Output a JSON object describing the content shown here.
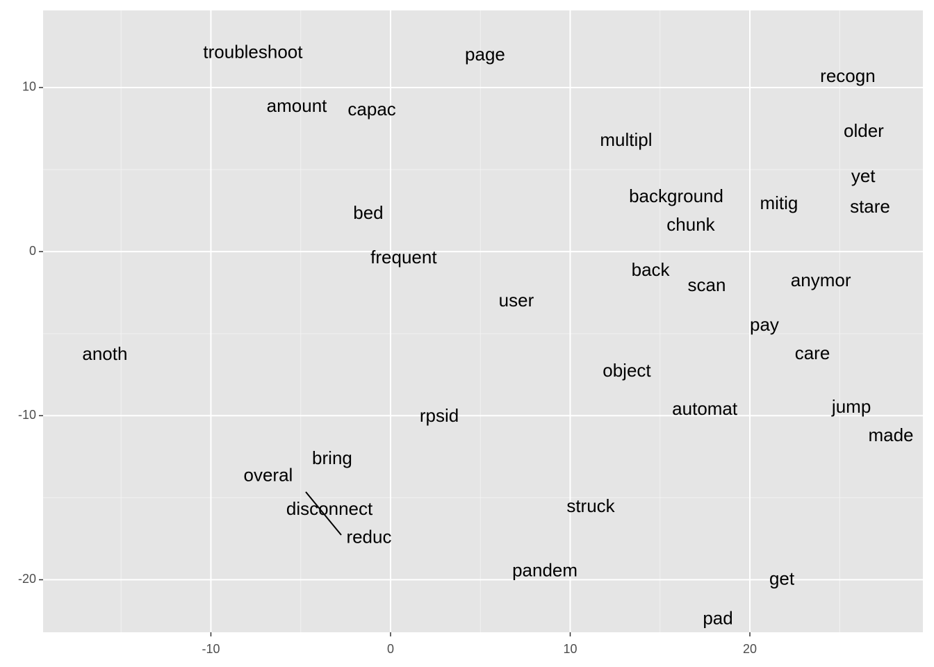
{
  "chart_data": {
    "type": "text-scatter",
    "labels": [
      "troubleshoot",
      "page",
      "recogn",
      "amount",
      "capac",
      "multipl",
      "older",
      "yet",
      "background",
      "mitig",
      "stare",
      "bed",
      "chunk",
      "frequent",
      "back",
      "scan",
      "anymor",
      "user",
      "pay",
      "anoth",
      "care",
      "object",
      "automat",
      "jump",
      "made",
      "rpsid",
      "bring",
      "overal",
      "disconnect",
      "struck",
      "reduc",
      "pandem",
      "get",
      "pad"
    ],
    "x": [
      -7.66,
      5.26,
      25.45,
      -5.22,
      -1.04,
      13.11,
      26.34,
      26.31,
      15.9,
      21.62,
      26.69,
      -1.24,
      16.71,
      0.73,
      14.47,
      17.6,
      23.95,
      7.0,
      20.81,
      -15.9,
      23.48,
      13.15,
      17.49,
      25.65,
      27.85,
      2.71,
      -3.25,
      -6.81,
      -3.4,
      11.14,
      -1.2,
      8.59,
      21.78,
      18.22
    ],
    "values": [
      12.08,
      11.95,
      10.64,
      8.81,
      8.6,
      6.74,
      7.29,
      4.53,
      3.31,
      2.88,
      2.67,
      2.29,
      1.57,
      -0.42,
      -1.19,
      -2.12,
      -1.82,
      -3.05,
      -4.53,
      -6.31,
      -6.27,
      -7.33,
      -9.66,
      -9.53,
      -11.27,
      -10.08,
      -12.67,
      -13.69,
      -15.76,
      -15.59,
      -17.46,
      -19.49,
      -20.0,
      -22.42
    ],
    "xlim": [
      -19.34,
      29.63
    ],
    "ylim": [
      -23.2,
      14.7
    ],
    "xticks": [
      -10,
      0,
      10,
      20
    ],
    "yticks": [
      -20,
      -10,
      0,
      10
    ],
    "x_minor_ticks": [
      -15,
      -5,
      5,
      15,
      25
    ],
    "y_minor_ticks": [
      -15,
      -5,
      5
    ],
    "grid": true
  }
}
